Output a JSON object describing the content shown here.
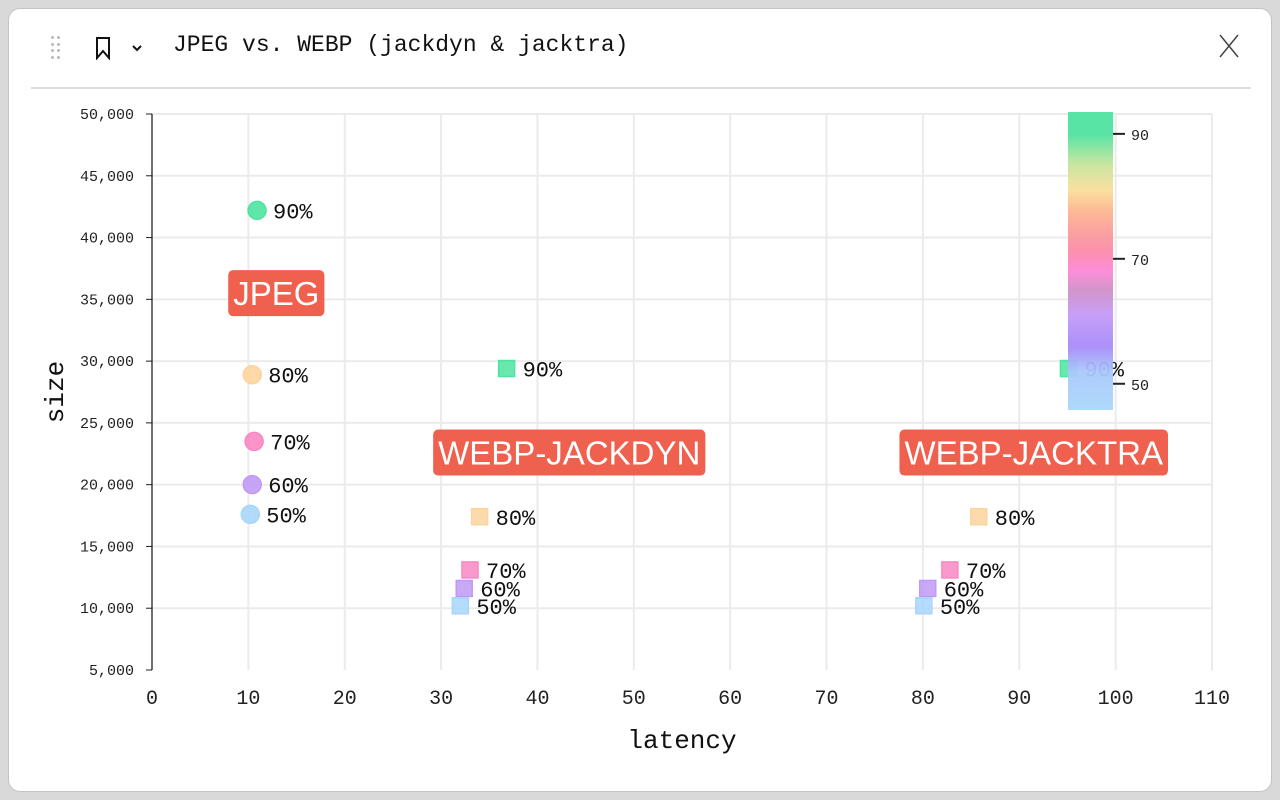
{
  "header": {
    "title": "JPEG vs. WEBP (jackdyn & jacktra)",
    "icons": [
      "drag-handle-icon",
      "bookmark-icon",
      "chevron-down-icon",
      "close-icon"
    ]
  },
  "chart_data": {
    "type": "scatter",
    "xlabel": "latency",
    "ylabel": "size",
    "xlim": [
      0,
      110
    ],
    "ylim": [
      5000,
      50000
    ],
    "xticks": [
      "0",
      "10",
      "20",
      "30",
      "40",
      "50",
      "60",
      "70",
      "80",
      "90",
      "100",
      "110"
    ],
    "yticks": [
      "5,000",
      "10,000",
      "15,000",
      "20,000",
      "25,000",
      "30,000",
      "35,000",
      "40,000",
      "45,000",
      "50,000"
    ],
    "grid": true,
    "series": [
      {
        "name": "JPEG",
        "marker": "circle",
        "points": [
          {
            "x": 10.9,
            "y": 42200,
            "quality": 90,
            "label": "90%"
          },
          {
            "x": 10.4,
            "y": 28900,
            "quality": 80,
            "label": "80%"
          },
          {
            "x": 10.6,
            "y": 23500,
            "quality": 70,
            "label": "70%"
          },
          {
            "x": 10.4,
            "y": 20000,
            "quality": 60,
            "label": "60%"
          },
          {
            "x": 10.2,
            "y": 17600,
            "quality": 50,
            "label": "50%"
          }
        ]
      },
      {
        "name": "WEBP-JACKDYN",
        "marker": "square",
        "points": [
          {
            "x": 36.8,
            "y": 29400,
            "quality": 90,
            "label": "90%"
          },
          {
            "x": 34.0,
            "y": 17400,
            "quality": 80,
            "label": "80%"
          },
          {
            "x": 33.0,
            "y": 13100,
            "quality": 70,
            "label": "70%"
          },
          {
            "x": 32.4,
            "y": 11600,
            "quality": 60,
            "label": "60%"
          },
          {
            "x": 32.0,
            "y": 10200,
            "quality": 50,
            "label": "50%"
          }
        ]
      },
      {
        "name": "WEBP-JACKTRA",
        "marker": "square",
        "points": [
          {
            "x": 95.1,
            "y": 29400,
            "quality": 90,
            "label": "90%"
          },
          {
            "x": 85.8,
            "y": 17400,
            "quality": 80,
            "label": "80%"
          },
          {
            "x": 82.8,
            "y": 13100,
            "quality": 70,
            "label": "70%"
          },
          {
            "x": 80.5,
            "y": 11600,
            "quality": 60,
            "label": "60%"
          },
          {
            "x": 80.1,
            "y": 10200,
            "quality": 50,
            "label": "50%"
          }
        ]
      }
    ],
    "annotations": [
      {
        "text": "JPEG",
        "x": 12.9,
        "y": 35500
      },
      {
        "text": "WEBP-JACKDYN",
        "x": 43.3,
        "y": 22600
      },
      {
        "text": "WEBP-JACKTRA",
        "x": 91.5,
        "y": 22600
      }
    ],
    "annotation_color": "#f0604f",
    "colorbar": {
      "range": [
        45.8,
        93.5
      ],
      "ticks": [
        "50",
        "70",
        "90"
      ],
      "tick_values": [
        50,
        70,
        90
      ],
      "stops": [
        [
          93.5,
          "#4ee3a0"
        ],
        [
          90,
          "#4ee3a0"
        ],
        [
          85,
          "#c8e59c"
        ],
        [
          81,
          "#f9df9a"
        ],
        [
          78,
          "#fdb98f"
        ],
        [
          74,
          "#fb9a9c"
        ],
        [
          71,
          "#fb8aab"
        ],
        [
          68,
          "#fc88d8"
        ],
        [
          65,
          "#d08fc6"
        ],
        [
          61,
          "#c49af8"
        ],
        [
          56,
          "#a78bfa"
        ],
        [
          52,
          "#a9c8fc"
        ],
        [
          45.8,
          "#a9d8fc"
        ]
      ]
    }
  }
}
